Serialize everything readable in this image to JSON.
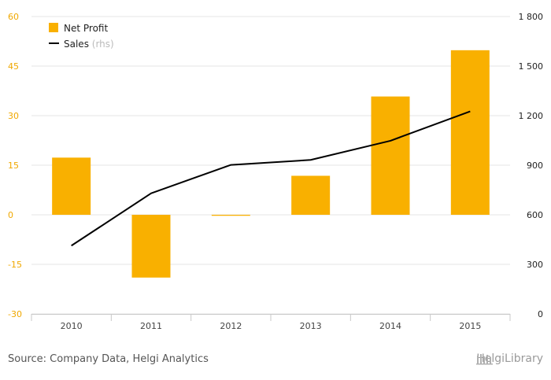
{
  "chart_data": {
    "type": "bar",
    "categories": [
      "2010",
      "2011",
      "2012",
      "2013",
      "2014",
      "2015"
    ],
    "series": [
      {
        "name": "Net Profit",
        "type": "bar",
        "axis": "left",
        "values": [
          17.3,
          -19,
          -0.3,
          11.8,
          35.8,
          49.8
        ]
      },
      {
        "name": "Sales",
        "type": "line",
        "axis": "right",
        "values": [
          413,
          730,
          902,
          932,
          1048,
          1226
        ]
      }
    ],
    "left_axis": {
      "ylim": [
        -30,
        60
      ],
      "ticks": [
        -30,
        -15,
        0,
        15,
        30,
        45,
        60
      ],
      "tick_labels": [
        "-30",
        "-15",
        "0",
        "15",
        "30",
        "45",
        "60"
      ]
    },
    "right_axis": {
      "ylim": [
        0,
        1800
      ],
      "ticks": [
        0,
        300,
        600,
        900,
        1200,
        1500,
        1800
      ],
      "tick_labels": [
        "0",
        "300",
        "600",
        "900",
        "1 200",
        "1 500",
        "1 800"
      ]
    },
    "legend": {
      "position": "top-left",
      "entries": [
        {
          "label": "Net Profit",
          "suffix": ""
        },
        {
          "label": "Sales",
          "suffix": " (rhs)"
        }
      ]
    },
    "grid": true,
    "colors": {
      "bar": "#f9b000",
      "line": "#000000",
      "left_ticks": "#f0a800",
      "grid": "#e6e6e6"
    }
  },
  "footer": {
    "source": "Source: Company Data, Helgi Analytics",
    "brand": "HelgiLibrary"
  }
}
